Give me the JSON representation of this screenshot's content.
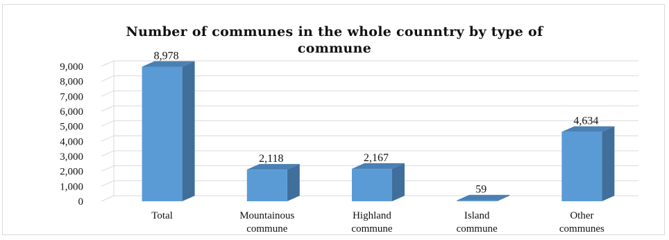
{
  "chart_data": {
    "type": "bar",
    "title": "Number of communes in the whole counntry by type of commune",
    "title_lines": [
      "Number of communes in the whole counntry by type of",
      "commune"
    ],
    "categories": [
      [
        "Total"
      ],
      [
        "Mountainous",
        "commune"
      ],
      [
        "Highland",
        "commune"
      ],
      [
        "Island",
        "commune"
      ],
      [
        "Other",
        "communes"
      ]
    ],
    "values": [
      8978,
      2118,
      2167,
      59,
      4634
    ],
    "value_labels": [
      "8,978",
      "2,118",
      "2,167",
      "59",
      "4,634"
    ],
    "ylim": [
      0,
      9000
    ],
    "yticks": [
      0,
      1000,
      2000,
      3000,
      4000,
      5000,
      6000,
      7000,
      8000,
      9000
    ],
    "ytick_labels": [
      "0",
      "1,000",
      "2,000",
      "3,000",
      "4,000",
      "5,000",
      "6,000",
      "7,000",
      "8,000",
      "9,000"
    ],
    "grid": true,
    "style": "3d-column",
    "colors": {
      "bar_front": "#5b9bd5",
      "bar_side": "#3f6f9a",
      "bar_top": "#4a80b3",
      "grid": "#d9d9d9"
    }
  }
}
